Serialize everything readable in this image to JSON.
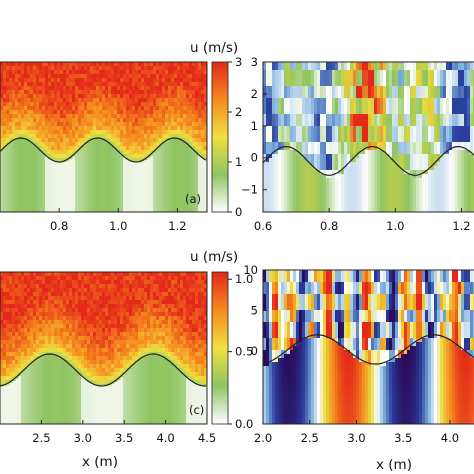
{
  "chart_data": [
    {
      "id": "a",
      "type": "heatmap",
      "panel_label": "(a)",
      "x_ticks": [
        "0.8",
        "1.0",
        "1.2"
      ],
      "x_tick_values": [
        0.8,
        1.0,
        1.2
      ],
      "xlim": [
        0.6,
        1.3
      ],
      "bed_profile": {
        "mean": 0.0,
        "amplitude": 0.5,
        "wavelength": 0.26,
        "crest_x": [
          0.93,
          1.19
        ]
      },
      "colorbar": {
        "title": "u (m/s)",
        "ticks": [
          "0",
          "1",
          "2",
          "3"
        ],
        "tick_values": [
          0,
          1,
          2,
          3
        ],
        "range": [
          0,
          3
        ],
        "colors": [
          "#ffffff",
          "#8fc462",
          "#f0e040",
          "#f58a1e",
          "#e4281a"
        ]
      }
    },
    {
      "id": "b",
      "type": "heatmap",
      "y_ticks": [
        "−1",
        "0",
        "1",
        "2",
        "3"
      ],
      "y_tick_values": [
        -1,
        0,
        1,
        2,
        3
      ],
      "ylim": [
        -1.7,
        3
      ],
      "x_ticks": [
        "0.6",
        "0.8",
        "1.0",
        "1.2"
      ],
      "x_tick_values": [
        0.6,
        0.8,
        1.0,
        1.2
      ],
      "xlim": [
        0.6,
        1.25
      ],
      "bed_profile": {
        "mean": -0.1,
        "amplitude": 0.45,
        "wavelength": 0.26,
        "crest_x": [
          0.67,
          0.93,
          1.19
        ]
      },
      "colors": [
        "#2b3f9e",
        "#7fb1db",
        "#ffffff",
        "#8fc462",
        "#e8d83a",
        "#e4281a"
      ]
    },
    {
      "id": "c",
      "type": "heatmap",
      "panel_label": "(c)",
      "x_ticks": [
        "2.5",
        "3.0",
        "3.5",
        "4.0",
        "4.5"
      ],
      "x_tick_values": [
        2.5,
        3.0,
        3.5,
        4.0,
        4.5
      ],
      "xlim": [
        2.0,
        4.5
      ],
      "xlabel": "x (m)",
      "bed_profile": {
        "mean": 0.0,
        "amplitude": 0.5,
        "wavelength": 1.25,
        "crest_x": [
          2.6,
          3.85
        ]
      },
      "colorbar": {
        "title": "u (m/s)",
        "ticks": [
          "0.0",
          "0.5",
          "1.0"
        ],
        "tick_values": [
          0.0,
          0.5,
          1.0
        ],
        "range": [
          0,
          1.05
        ],
        "colors": [
          "#ffffff",
          "#8fc462",
          "#f0e040",
          "#f58a1e",
          "#e4281a"
        ]
      }
    },
    {
      "id": "d",
      "type": "heatmap",
      "y_ticks": [
        "0",
        "5",
        "10"
      ],
      "y_tick_values": [
        0,
        5,
        10
      ],
      "ylim": [
        -9,
        10
      ],
      "x_ticks": [
        "2.0",
        "2.5",
        "3.0",
        "3.5",
        "4.0"
      ],
      "x_tick_values": [
        2.0,
        2.5,
        3.0,
        3.5,
        4.0
      ],
      "xlim": [
        2.0,
        4.3
      ],
      "xlabel": "x (m)",
      "bed_profile": {
        "mean": 0.2,
        "amplitude": 1.8,
        "wavelength": 1.25,
        "crest_x": [
          2.58,
          3.83
        ]
      },
      "colors": [
        "#2a0a5a",
        "#2b3f9e",
        "#7fb1db",
        "#ffffff",
        "#e8d83a",
        "#f58a1e",
        "#e4281a"
      ]
    }
  ]
}
